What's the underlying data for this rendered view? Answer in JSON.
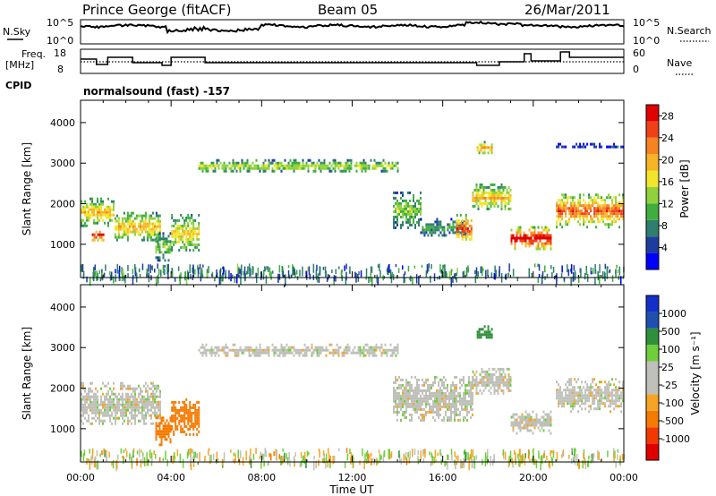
{
  "header": {
    "station": "Prince George (fitACF)",
    "beam": "Beam 05",
    "date": "26/Mar/2011"
  },
  "strip": {
    "nsky_label": "N.Sky",
    "nsky_top": "10^5",
    "nsky_bottom": "10^0",
    "nsearch_label": "N.Search",
    "nsearch_top": "10^5",
    "nsearch_bottom": "10^0",
    "freq_label_1": "Freq.",
    "freq_label_2": "[MHz]",
    "freq_top": "18",
    "freq_bottom": "8",
    "nave_label": "Nave",
    "nave_top": "60",
    "nave_bottom": "0",
    "cpid_label": "CPID",
    "cpid_text": "normalsound (fast) -157"
  },
  "colors": {
    "power": [
      "#0000ff",
      "#1e3c9e",
      "#2f7f6e",
      "#3fae3f",
      "#8fd23c",
      "#f3e62a",
      "#f7b526",
      "#f58420",
      "#f04018",
      "#e00000"
    ],
    "velocity": [
      "#e00000",
      "#f23a00",
      "#f57a00",
      "#f5a524",
      "#c0c0bb",
      "#c0c0bb",
      "#6fcf3a",
      "#2f8f3a",
      "#1e50b0",
      "#1530c8"
    ]
  },
  "chart_data": [
    {
      "type": "heatmap",
      "panel": "power",
      "xlabel": "",
      "ylabel": "Slant Range [km]",
      "xlim_hours": [
        0,
        24
      ],
      "ylim": [
        180,
        4550
      ],
      "y_ticks": [
        "1000",
        "2000",
        "3000",
        "4000"
      ],
      "colorbar_label": "Power [dB]",
      "colorbar_ticks": [
        "4",
        "8",
        "12",
        "16",
        "20",
        "24",
        "28"
      ],
      "colorbar_range": [
        0,
        30
      ],
      "features": [
        {
          "t": [
            0.0,
            1.5
          ],
          "r": [
            1480,
            2150
          ],
          "mid": 18
        },
        {
          "t": [
            0.5,
            1.0
          ],
          "r": [
            1100,
            1400
          ],
          "mid": 29
        },
        {
          "t": [
            1.5,
            3.5
          ],
          "r": [
            1100,
            1800
          ],
          "mid": 18
        },
        {
          "t": [
            3.3,
            4.0
          ],
          "r": [
            600,
            1300
          ],
          "mid": 12
        },
        {
          "t": [
            4.0,
            5.2
          ],
          "r": [
            850,
            1750
          ],
          "mid": 17
        },
        {
          "t": [
            5.2,
            14.0
          ],
          "r": [
            2800,
            3100
          ],
          "mid": 14
        },
        {
          "t": [
            13.8,
            15.0
          ],
          "r": [
            1400,
            2300
          ],
          "mid": 12
        },
        {
          "t": [
            15.0,
            17.0
          ],
          "r": [
            1200,
            1650
          ],
          "mid": 9
        },
        {
          "t": [
            16.6,
            17.3
          ],
          "r": [
            1050,
            1750
          ],
          "mid": 24
        },
        {
          "t": [
            17.3,
            19.0
          ],
          "r": [
            1850,
            2500
          ],
          "mid": 18
        },
        {
          "t": [
            17.5,
            18.2
          ],
          "r": [
            3250,
            3550
          ],
          "mid": 20
        },
        {
          "t": [
            19.0,
            20.8
          ],
          "r": [
            900,
            1450
          ],
          "mid": 28
        },
        {
          "t": [
            21.0,
            24.0
          ],
          "r": [
            1450,
            2250
          ],
          "mid": 23
        },
        {
          "t": [
            21.0,
            24.0
          ],
          "r": [
            3400,
            3500
          ],
          "mid": 4
        }
      ]
    },
    {
      "type": "heatmap",
      "panel": "velocity",
      "xlabel": "Time UT",
      "ylabel": "Slant Range [km]",
      "xlim_hours": [
        0,
        24
      ],
      "x_ticks": [
        "00:00",
        "04:00",
        "08:00",
        "12:00",
        "16:00",
        "20:00",
        "00:00"
      ],
      "ylim": [
        180,
        4550
      ],
      "y_ticks": [
        "1000",
        "2000",
        "3000",
        "4000"
      ],
      "colorbar_label": "Velocity [m s⁻¹]",
      "colorbar_ticks": [
        "1000",
        "500",
        "100",
        "25",
        "-25",
        "-100",
        "-500",
        "-1000"
      ],
      "features": [
        {
          "t": [
            0.0,
            3.5
          ],
          "r": [
            1100,
            2150
          ],
          "v": 0
        },
        {
          "t": [
            3.3,
            4.0
          ],
          "r": [
            600,
            1300
          ],
          "v": -400
        },
        {
          "t": [
            4.0,
            5.2
          ],
          "r": [
            850,
            1750
          ],
          "v": -350
        },
        {
          "t": [
            5.2,
            14.0
          ],
          "r": [
            2800,
            3100
          ],
          "v": 0
        },
        {
          "t": [
            13.8,
            17.3
          ],
          "r": [
            1200,
            2300
          ],
          "v": 0
        },
        {
          "t": [
            17.3,
            19.0
          ],
          "r": [
            1850,
            2500
          ],
          "v": 0
        },
        {
          "t": [
            17.5,
            18.2
          ],
          "r": [
            3250,
            3550
          ],
          "v": 150
        },
        {
          "t": [
            19.0,
            20.8
          ],
          "r": [
            900,
            1450
          ],
          "v": 0
        },
        {
          "t": [
            21.0,
            24.0
          ],
          "r": [
            1450,
            2250
          ],
          "v": 0
        }
      ]
    }
  ]
}
